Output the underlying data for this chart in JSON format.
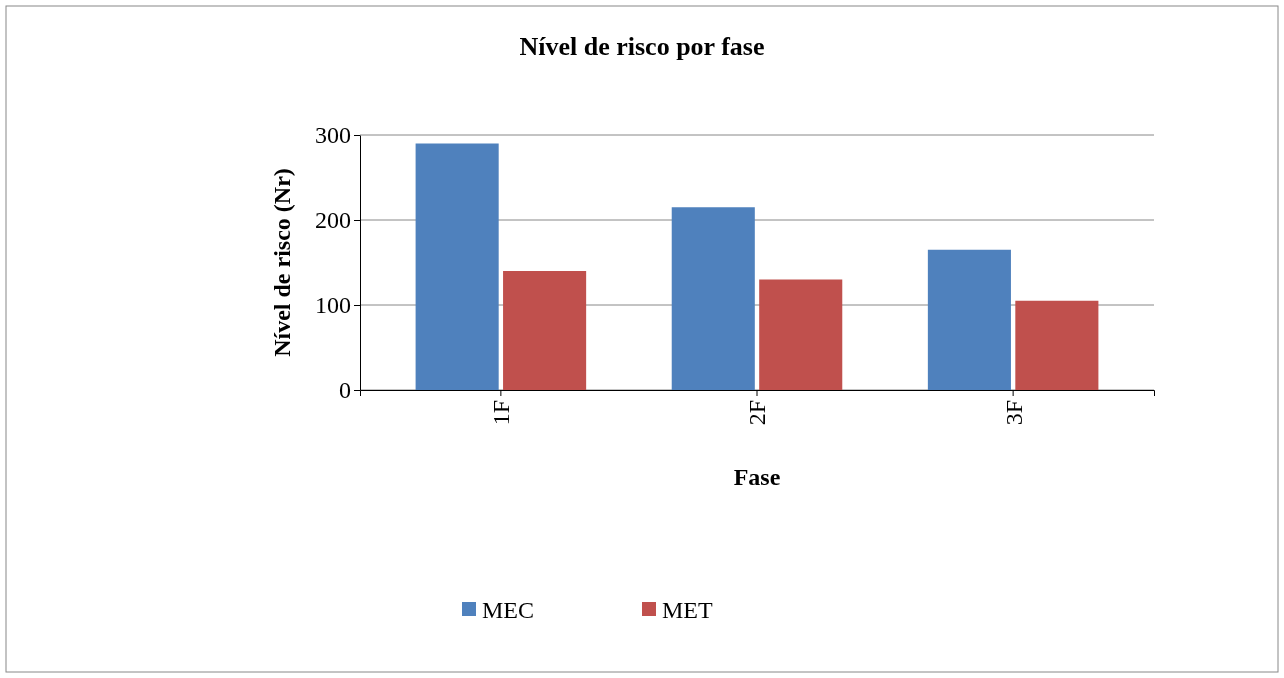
{
  "chart_data": {
    "type": "bar",
    "title": "Nível de risco por fase",
    "xlabel": "Fase",
    "ylabel": "Nível de risco (Nr)",
    "categories": [
      "1F",
      "2F",
      "3F"
    ],
    "series": [
      {
        "name": "MEC",
        "color": "#4f81bd",
        "values": [
          290,
          215,
          165
        ]
      },
      {
        "name": "MET",
        "color": "#c0504d",
        "values": [
          140,
          130,
          105
        ]
      }
    ],
    "ylim": [
      0,
      300
    ],
    "yticks": [
      0,
      100,
      200,
      300
    ],
    "grid": "y",
    "legend": "bottom"
  }
}
